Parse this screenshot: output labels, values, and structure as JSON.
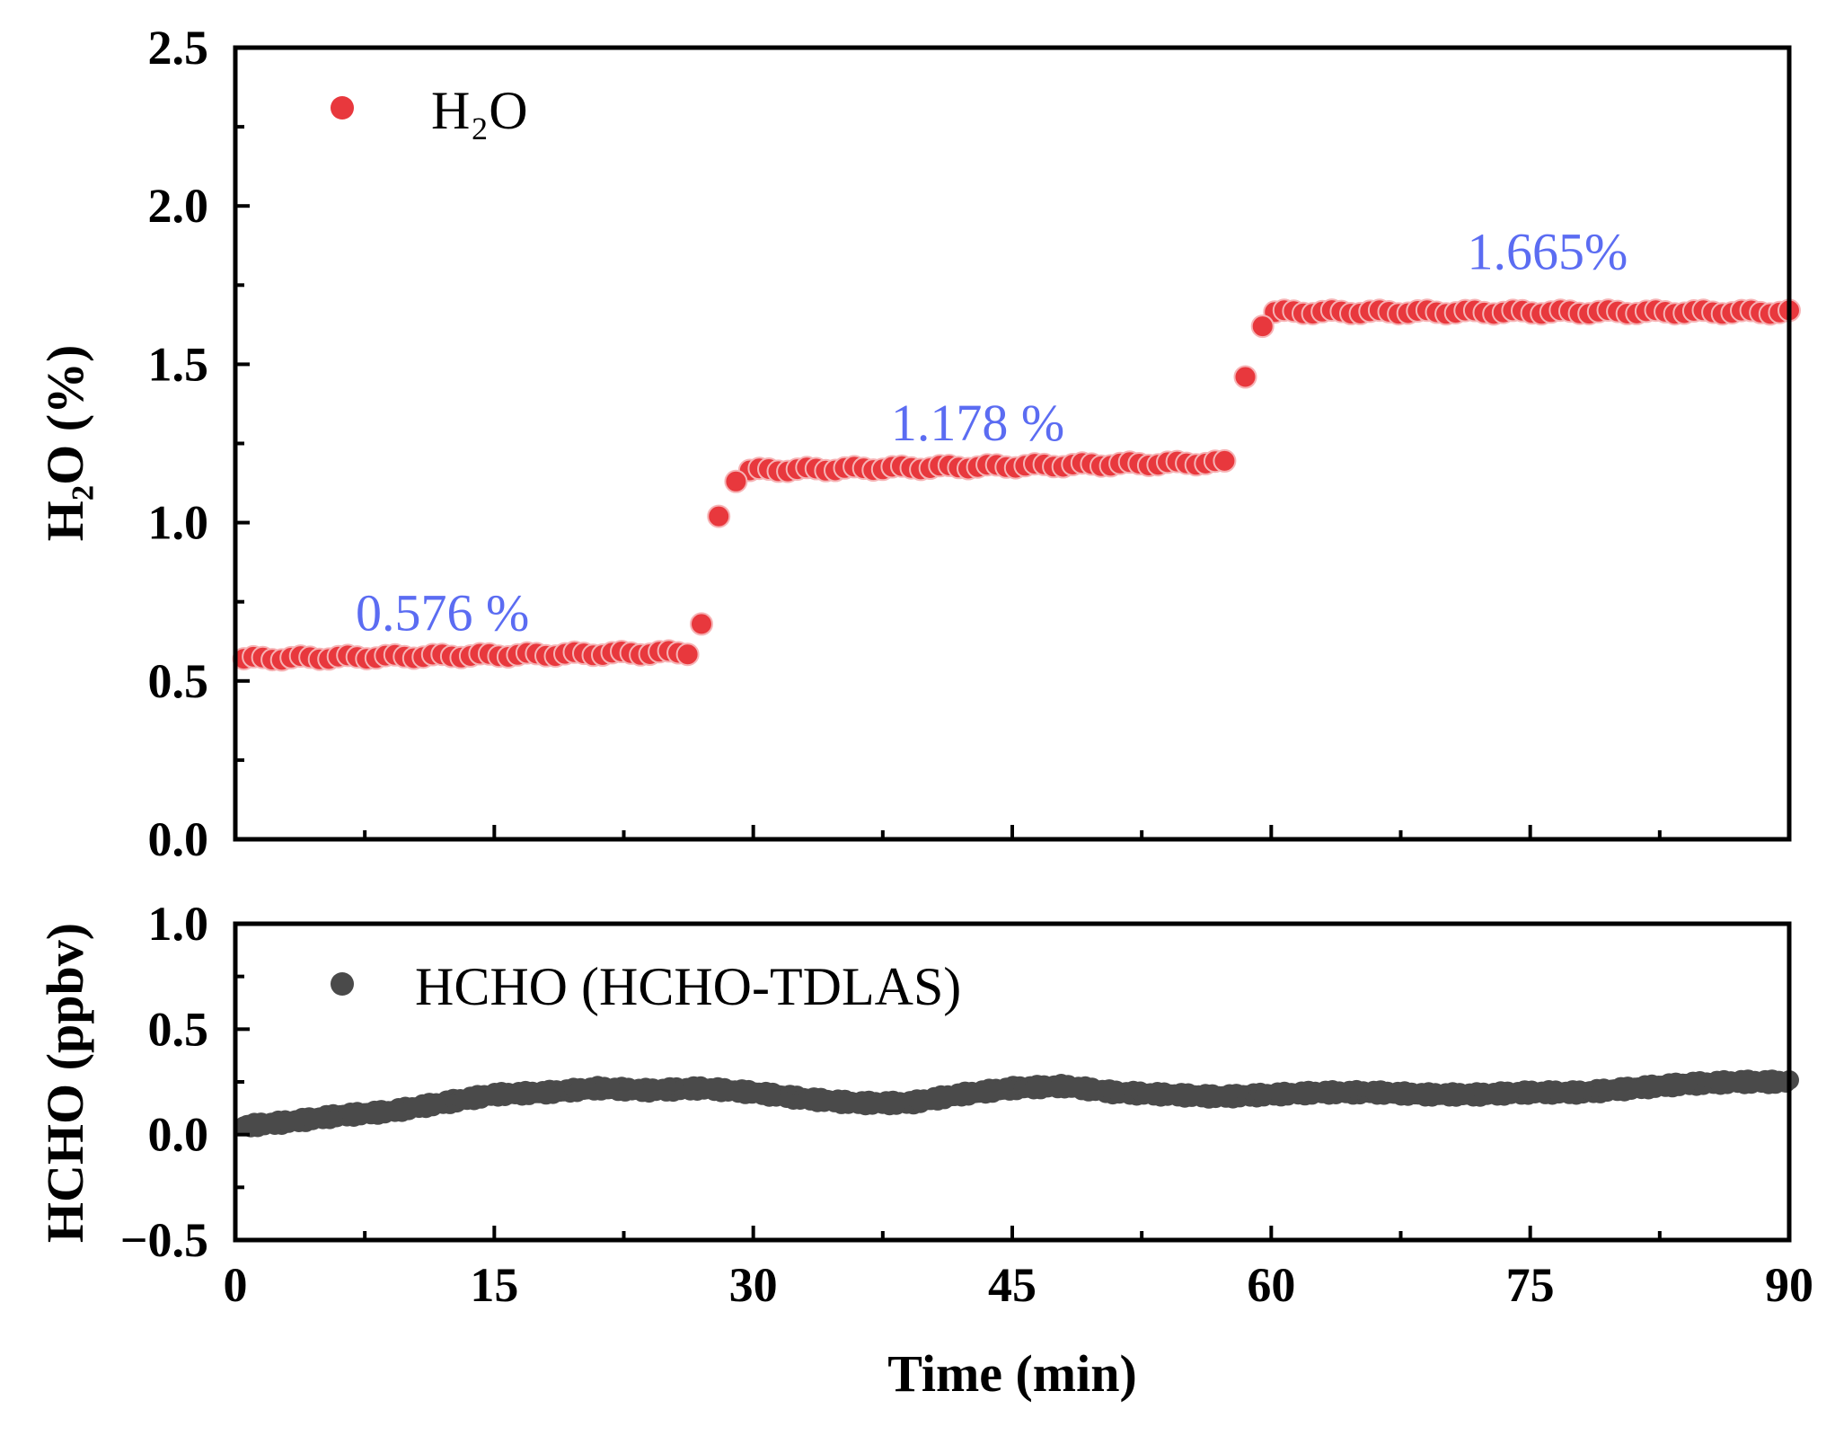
{
  "chart_data": [
    {
      "type": "scatter",
      "panel": "top",
      "ylabel": "H₂O (%)",
      "ylim": [
        0.0,
        2.5
      ],
      "y_ticks": [
        "0.0",
        "0.5",
        "1.0",
        "1.5",
        "2.0",
        "2.5"
      ],
      "xlim": [
        0,
        90
      ],
      "legend": "H₂O",
      "legend_placement": "top-left",
      "marker_color": "#e8383d",
      "annotations": [
        {
          "text": "0.576 %",
          "x": 12,
          "y": 0.66
        },
        {
          "text": "1.178 %",
          "x": 43,
          "y": 1.26
        },
        {
          "text": "1.665%",
          "x": 76,
          "y": 1.8
        }
      ],
      "series": [
        {
          "name": "H₂O",
          "x": [
            0.5,
            27,
            28,
            29,
            57.5,
            58.5,
            59.5,
            61,
            90
          ],
          "y": [
            0.57,
            0.68,
            1.02,
            1.13,
            1.19,
            1.46,
            1.62,
            1.68,
            1.66
          ],
          "segments": [
            {
              "x_start": 0.5,
              "x_end": 26.2,
              "y_start": 0.57,
              "y_end": 0.59
            },
            {
              "x_start": 29.8,
              "x_end": 57.3,
              "y_start": 1.165,
              "y_end": 1.19
            },
            {
              "x_start": 60.2,
              "x_end": 90,
              "y_start": 1.665,
              "y_end": 1.665
            }
          ]
        }
      ]
    },
    {
      "type": "scatter",
      "panel": "bottom",
      "ylabel": "HCHO (ppbv)",
      "ylim": [
        -0.5,
        1.0
      ],
      "y_ticks": [
        "−0.5",
        "0.0",
        "0.5",
        "1.0"
      ],
      "xlabel": "Time (min)",
      "xlim": [
        0,
        90
      ],
      "x_ticks": [
        "0",
        "15",
        "30",
        "45",
        "60",
        "75",
        "90"
      ],
      "legend": "HCHO (HCHO-TDLAS)",
      "legend_placement": "top-left",
      "marker_color": "#4a4a4a",
      "series": [
        {
          "name": "HCHO (HCHO-TDLAS)",
          "x": [
            0.5,
            3,
            6,
            9,
            12,
            15,
            18,
            21,
            24,
            27,
            30,
            33,
            36,
            39,
            42,
            45,
            48,
            51,
            54,
            57,
            60,
            63,
            66,
            69,
            72,
            75,
            78,
            81,
            84,
            87,
            90
          ],
          "y": [
            0.04,
            0.06,
            0.09,
            0.11,
            0.15,
            0.19,
            0.2,
            0.22,
            0.21,
            0.22,
            0.2,
            0.17,
            0.15,
            0.15,
            0.19,
            0.22,
            0.23,
            0.2,
            0.19,
            0.18,
            0.19,
            0.2,
            0.2,
            0.19,
            0.19,
            0.2,
            0.2,
            0.22,
            0.24,
            0.25,
            0.25
          ]
        }
      ]
    }
  ]
}
